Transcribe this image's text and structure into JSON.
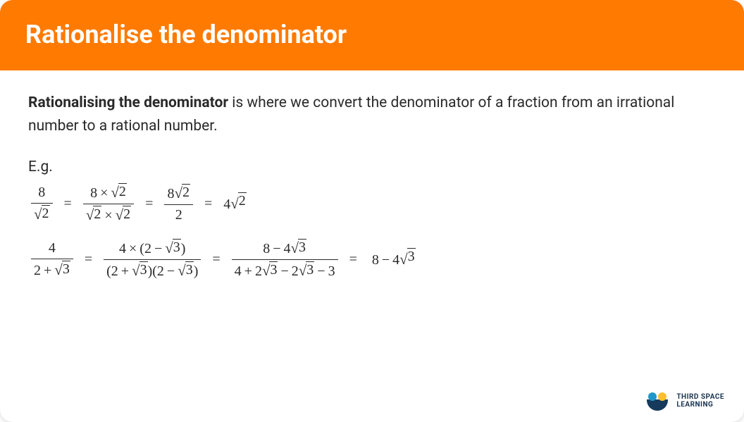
{
  "colors": {
    "header_bg": "#ff7a00",
    "header_text": "#ffffff",
    "body_text": "#2a2a2a",
    "card_bg": "#ffffff",
    "logo_dot1": "#2196c9",
    "logo_dot2": "#fdbf2d",
    "logo_arc": "#153a5b",
    "logo_text": "#1a3450"
  },
  "header": {
    "title": "Rationalise the denominator"
  },
  "intro": {
    "bold": "Rationalising the denominator",
    "rest": " is where we convert the denominator of a fraction from an irrational number to a rational number."
  },
  "eg_label": "E.g.",
  "eq1": {
    "step1": {
      "num": "8",
      "den_radicand": "2"
    },
    "step2": {
      "num_a": "8",
      "num_rad": "2",
      "den_rad_a": "2",
      "den_rad_b": "2"
    },
    "step3": {
      "num_coef": "8",
      "num_rad": "2",
      "den": "2"
    },
    "result": {
      "coef": "4",
      "rad": "2"
    }
  },
  "eq2": {
    "step1": {
      "num": "4",
      "den_a": "2",
      "den_rad": "3"
    },
    "step2": {
      "num_a": "4",
      "num_b": "2",
      "num_rad": "3",
      "den_a1": "2",
      "den_rad1": "3",
      "den_a2": "2",
      "den_rad2": "3"
    },
    "step3": {
      "num_a": "8",
      "num_coef": "4",
      "num_rad": "3",
      "den_a": "4",
      "den_c1": "2",
      "den_r1": "3",
      "den_c2": "2",
      "den_r2": "3",
      "den_last": "3"
    },
    "result": {
      "a": "8",
      "coef": "4",
      "rad": "3"
    }
  },
  "logo": {
    "line1": "THIRD SPACE",
    "line2": "LEARNING"
  },
  "symbols": {
    "times": "×",
    "minus": "−",
    "plus": "+",
    "equals": "="
  }
}
